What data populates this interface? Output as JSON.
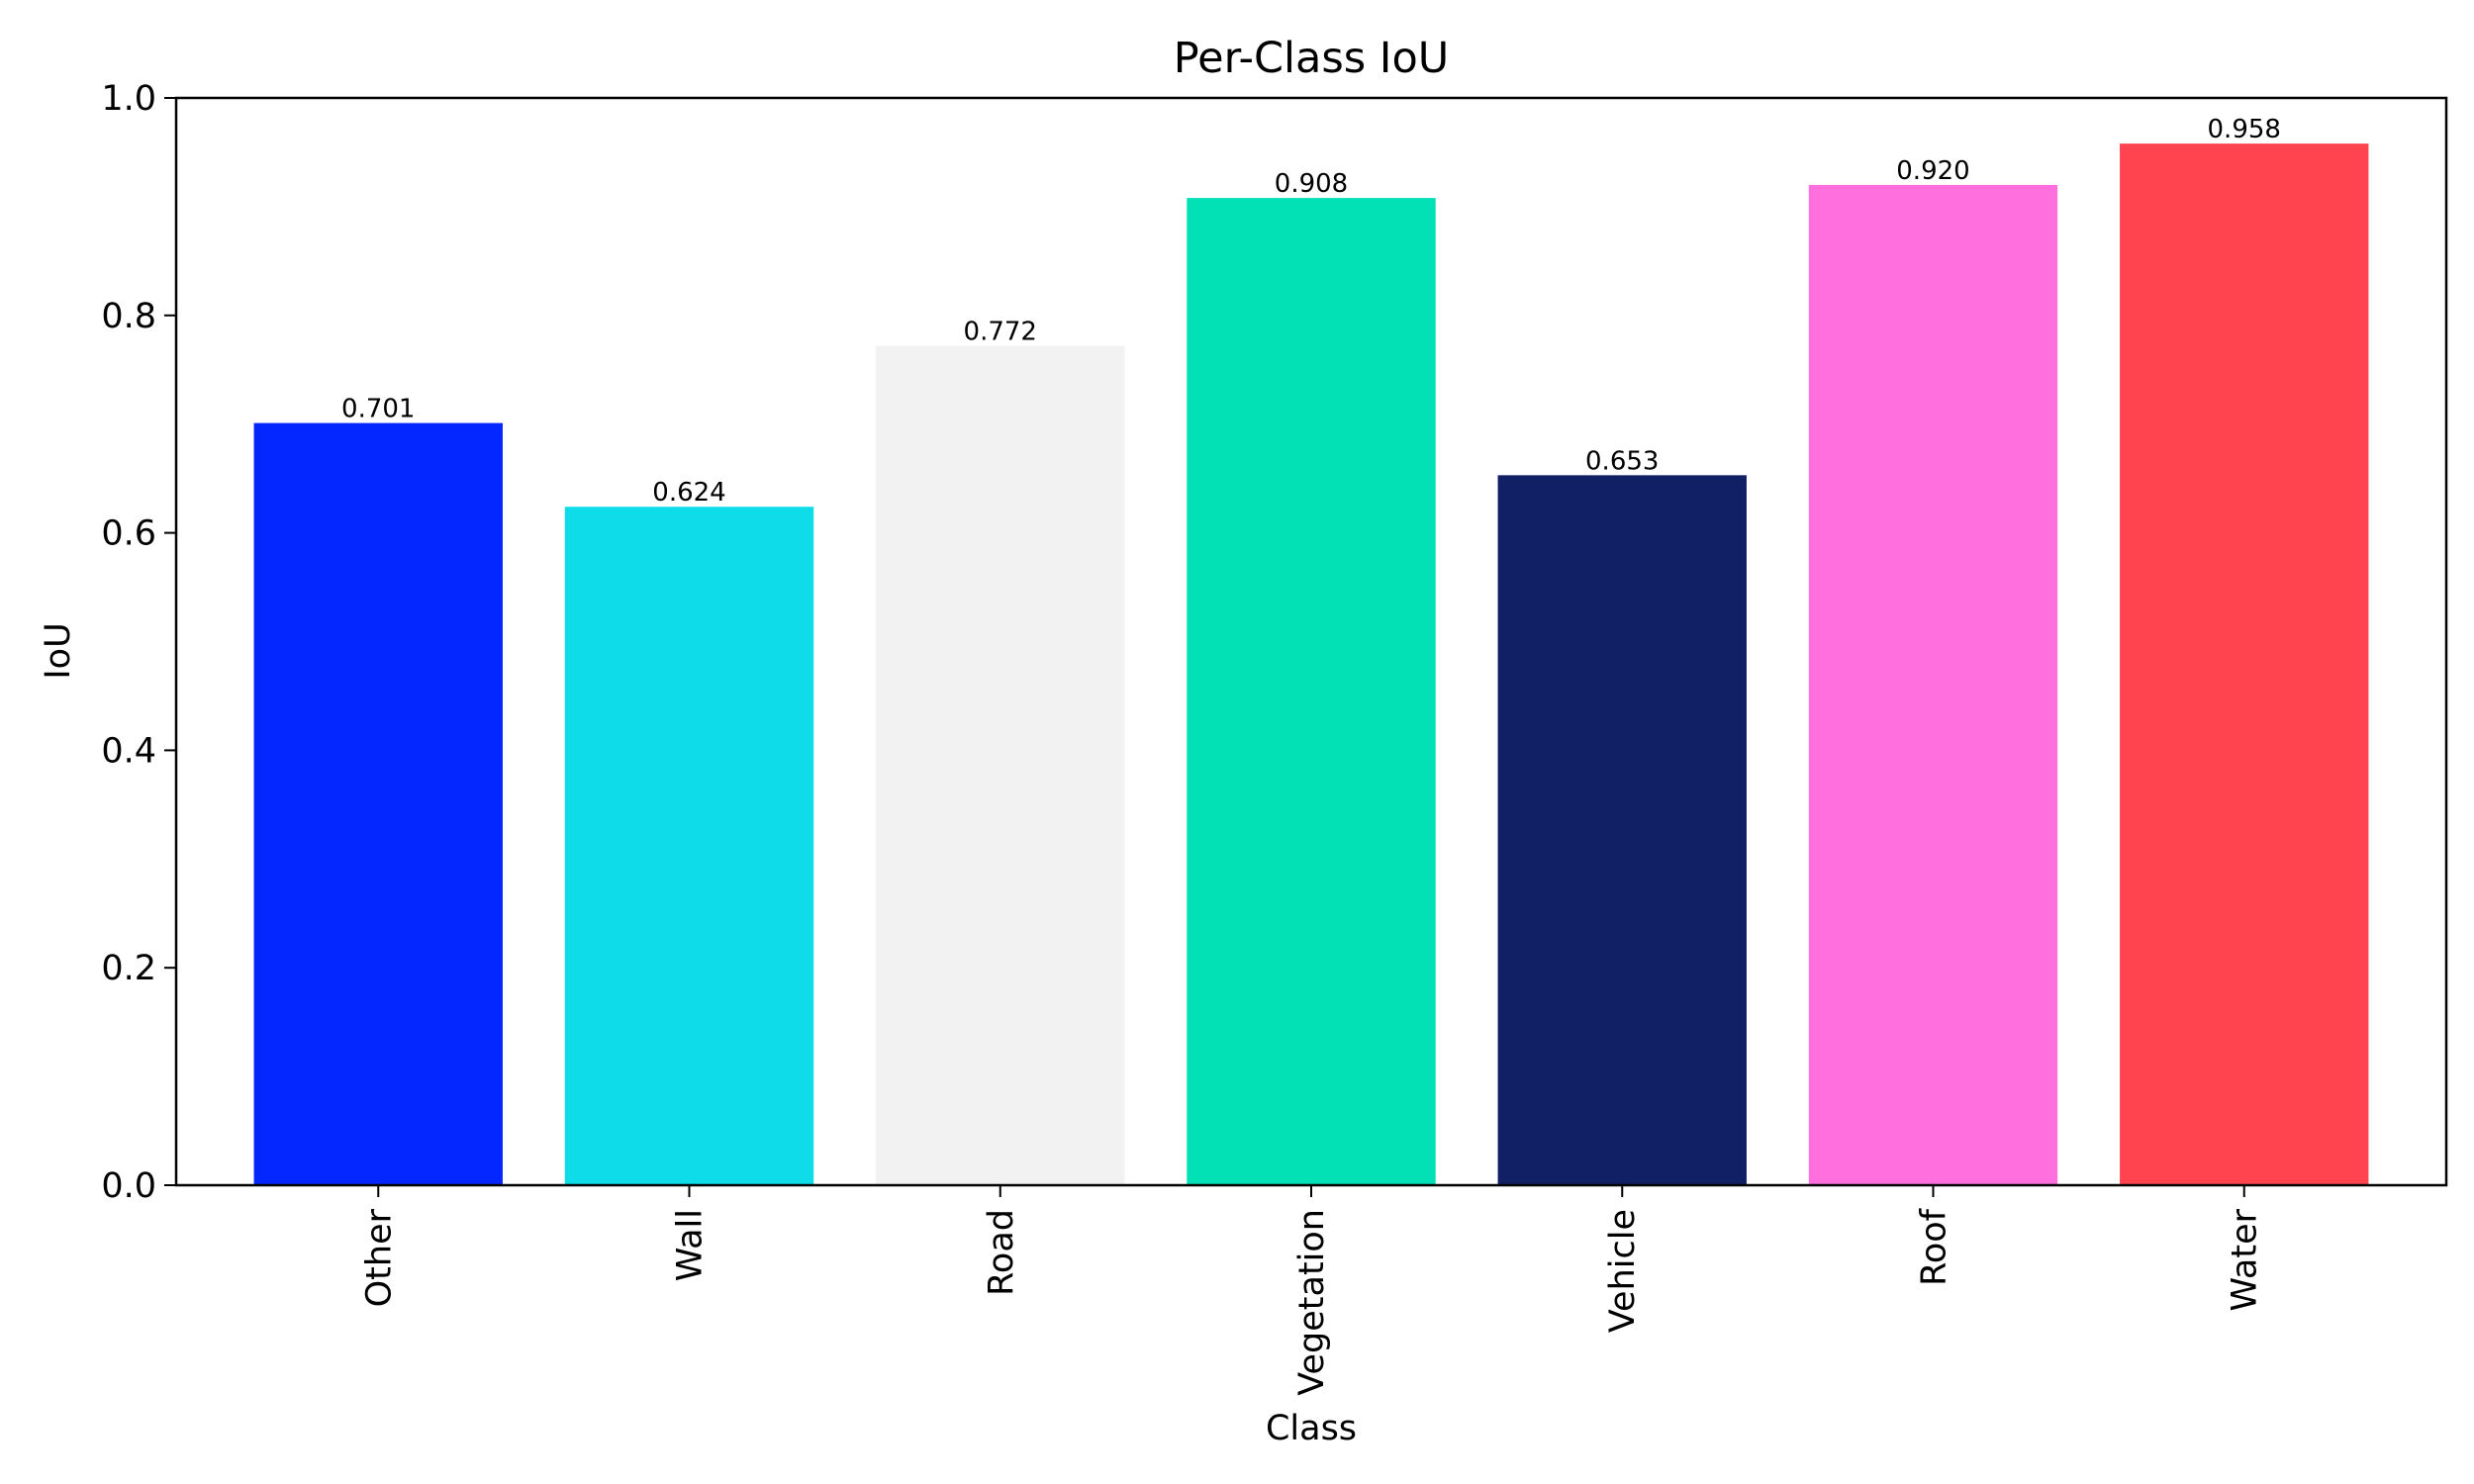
{
  "chart_data": {
    "type": "bar",
    "title": "Per-Class IoU",
    "xlabel": "Class",
    "ylabel": "IoU",
    "categories": [
      "Other",
      "Wall",
      "Road",
      "Vegetation",
      "Vehicle",
      "Roof",
      "Water"
    ],
    "values": [
      0.701,
      0.624,
      0.772,
      0.908,
      0.653,
      0.92,
      0.958
    ],
    "value_labels": [
      "0.701",
      "0.624",
      "0.772",
      "0.908",
      "0.653",
      "0.920",
      "0.958"
    ],
    "colors": [
      "#0527ff",
      "#0edce9",
      "#f2f2f2",
      "#02e0b6",
      "#111f64",
      "#ff70de",
      "#ff444f"
    ],
    "ylim": [
      0,
      1.0
    ],
    "yticks": [
      0.0,
      0.2,
      0.4,
      0.6,
      0.8,
      1.0
    ],
    "ytick_labels": [
      "0.0",
      "0.2",
      "0.4",
      "0.6",
      "0.8",
      "1.0"
    ],
    "grid": false,
    "legend": "none"
  }
}
